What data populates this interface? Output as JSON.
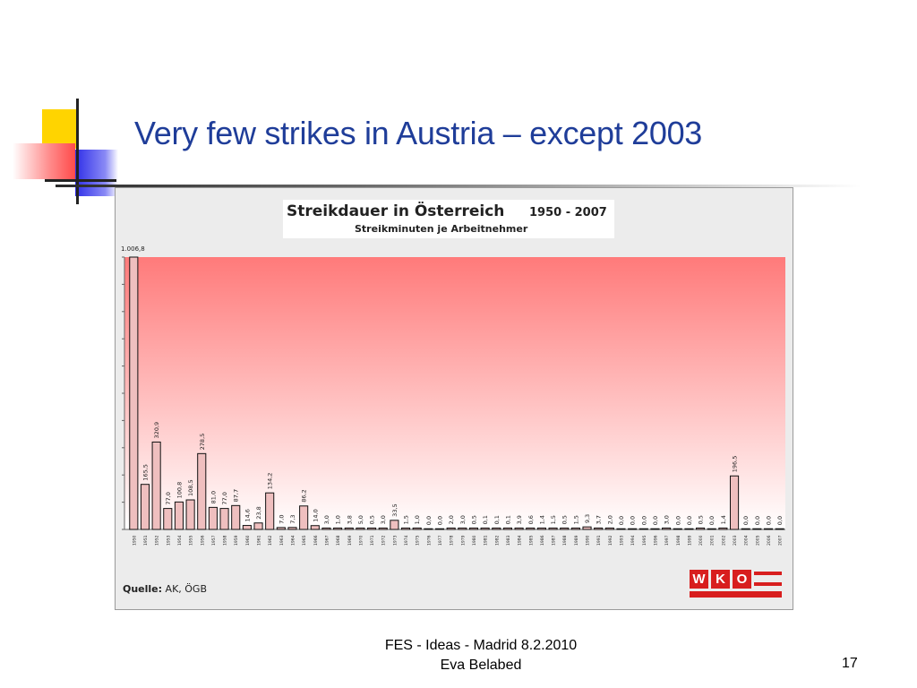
{
  "slide": {
    "title": "Very few strikes in Austria – except 2003",
    "footer_line1": "FES - Ideas - Madrid 8.2.2010",
    "footer_line2": "Eva Belabed",
    "page_number": "17"
  },
  "colors": {
    "title": "#1f3d99",
    "deco_yellow": "#ffd400",
    "deco_blue": "#3a3af0",
    "deco_red": "#ff5a5a",
    "bar_fill": "#efbfbf",
    "plot_gradient_top": "#ff7a7a",
    "wko_red": "#d81e1e"
  },
  "chart_data": {
    "type": "bar",
    "title": "Streikdauer in Österreich",
    "title_range": "1950 - 2007",
    "subtitle": "Streikminuten je Arbeitnehmer",
    "clipped_value_label": "1.006,8",
    "source_prefix": "Quelle:",
    "source": "AK, ÖGB",
    "logo_text": "WKO",
    "categories": [
      "1950",
      "1951",
      "1952",
      "1953",
      "1954",
      "1955",
      "1956",
      "1957",
      "1958",
      "1959",
      "1960",
      "1961",
      "1962",
      "1963",
      "1964",
      "1965",
      "1966",
      "1967",
      "1968",
      "1969",
      "1970",
      "1971",
      "1972",
      "1973",
      "1974",
      "1975",
      "1976",
      "1977",
      "1978",
      "1979",
      "1980",
      "1981",
      "1982",
      "1983",
      "1984",
      "1985",
      "1986",
      "1987",
      "1988",
      "1989",
      "1990",
      "1991",
      "1992",
      "1993",
      "1994",
      "1995",
      "1996",
      "1997",
      "1998",
      "1999",
      "2000",
      "2001",
      "2002",
      "2003",
      "2004",
      "2005",
      "2006",
      "2007"
    ],
    "values": [
      1006.8,
      165.5,
      320.9,
      77.0,
      100.8,
      108.5,
      278.5,
      81.0,
      77.0,
      87.7,
      14.6,
      23.8,
      134.2,
      7.0,
      7.3,
      86.2,
      14.0,
      3.0,
      1.0,
      3.8,
      5.0,
      0.5,
      3.0,
      33.5,
      1.5,
      1.0,
      0.0,
      0.0,
      2.0,
      3.0,
      0.5,
      0.1,
      0.1,
      0.1,
      3.9,
      0.6,
      1.4,
      1.5,
      0.5,
      1.5,
      9.3,
      3.7,
      2.0,
      0.0,
      0.0,
      0.0,
      0.0,
      3.0,
      0.0,
      0.0,
      0.5,
      0.0,
      1.4,
      196.5,
      0.0,
      0.0,
      0.0,
      0.0
    ],
    "value_labels": [
      "",
      "165,5",
      "320,9",
      "77,0",
      "100,8",
      "108,5",
      "278,5",
      "81,0",
      "77,0",
      "87,7",
      "14,6",
      "23,8",
      "134,2",
      "7,0",
      "7,3",
      "86,2",
      "14,0",
      "3,0",
      "1,0",
      "3,8",
      "5,0",
      "0,5",
      "3,0",
      "33,5",
      "1,5",
      "1,0",
      "0,0",
      "0,0",
      "2,0",
      "3,0",
      "0,5",
      "0,1",
      "0,1",
      "0,1",
      "3,9",
      "0,6",
      "1,4",
      "1,5",
      "0,5",
      "1,5",
      "9,3",
      "3,7",
      "2,0",
      "0,0",
      "0,0",
      "0,0",
      "0,0",
      "3,0",
      "0,0",
      "0,0",
      "0,5",
      "0,0",
      "1,4",
      "196,5",
      "0,0",
      "0,0",
      "0,0",
      "0,0"
    ],
    "ylim": [
      0,
      1000
    ],
    "plot_ymax": 1000,
    "grid": false,
    "legend": "none"
  }
}
